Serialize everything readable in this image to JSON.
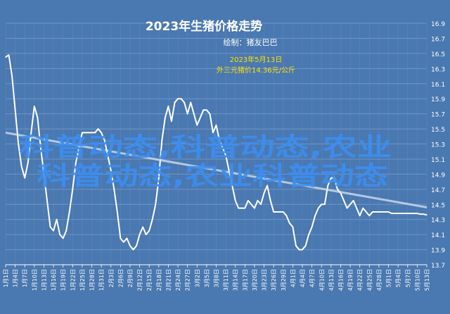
{
  "chart_data": {
    "type": "line",
    "title": "2023年生猪价格走势",
    "subtitle": "绘制：猪友巴巴",
    "annotation": {
      "line1": "2023年5月13日",
      "line2": "外三元猪价14.36元/公斤",
      "x": "5月13日",
      "y": 14.36
    },
    "watermark": {
      "line1": "科普动态,科普动态,农业",
      "line2": "科普动态,农业科普动态"
    },
    "ylim": [
      13.7,
      16.9
    ],
    "y_ticks": [
      "16.9",
      "16.7",
      "16.5",
      "16.3",
      "16.1",
      "15.9",
      "15.7",
      "15.5",
      "15.3",
      "15.1",
      "14.9",
      "14.7",
      "14.5",
      "14.3",
      "14.1",
      "13.9",
      "13.7"
    ],
    "x_tick_labels": [
      "1月1日",
      "1月4日",
      "1月7日",
      "1月10日",
      "1月13日",
      "1月16日",
      "1月19日",
      "1月22日",
      "1月25日",
      "1月28日",
      "1月31日",
      "2月3日",
      "2月6日",
      "2月9日",
      "2月12日",
      "2月15日",
      "2月18日",
      "2月21日",
      "2月24日",
      "2月27日",
      "3月2日",
      "3月5日",
      "3月8日",
      "3月11日",
      "3月14日",
      "3月17日",
      "3月20日",
      "3月23日",
      "3月26日",
      "3月29日",
      "4月1日",
      "4月4日",
      "4月7日",
      "4月10日",
      "4月13日",
      "4月16日",
      "4月19日",
      "4月22日",
      "4月25日",
      "4月28日",
      "5月1日",
      "5月4日",
      "5月7日",
      "5月10日",
      "5月13日"
    ],
    "series": [
      {
        "kind": "price",
        "x_index": [
          0,
          1,
          2,
          3,
          4,
          5,
          6,
          7,
          8,
          9,
          10,
          11,
          12,
          13,
          14,
          15,
          16,
          17,
          18,
          19,
          20,
          21,
          22,
          23,
          24,
          25,
          26,
          27,
          28,
          29,
          30,
          31,
          32,
          33,
          34,
          35,
          36,
          37,
          38,
          39,
          40,
          41,
          42,
          43,
          44,
          45,
          46,
          47,
          48,
          49,
          50,
          51,
          52,
          53,
          54,
          55,
          56,
          57,
          58,
          59,
          60,
          61,
          62,
          63,
          64,
          65,
          66,
          67,
          68,
          69,
          70,
          71,
          72,
          73,
          74,
          75,
          76,
          77,
          78,
          79,
          80,
          81,
          82,
          83,
          84,
          85,
          86,
          87,
          88,
          89,
          90,
          91,
          92,
          93,
          94,
          95,
          96,
          97,
          98,
          99,
          100,
          101,
          102,
          103,
          104,
          105,
          106,
          107,
          108,
          109,
          110,
          111,
          112,
          113,
          114,
          115,
          116,
          117,
          118,
          119,
          120,
          121,
          122,
          123,
          124,
          125,
          126,
          127,
          128,
          129,
          130,
          131,
          132
        ],
        "values": [
          16.45,
          16.48,
          16.2,
          15.75,
          15.3,
          15.0,
          14.85,
          15.05,
          15.45,
          15.8,
          15.65,
          15.25,
          14.9,
          14.55,
          14.2,
          14.15,
          14.3,
          14.1,
          14.05,
          14.15,
          14.4,
          14.7,
          15.05,
          15.25,
          15.45,
          15.45,
          15.45,
          15.45,
          15.45,
          15.5,
          15.45,
          15.35,
          15.15,
          14.95,
          14.7,
          14.4,
          14.05,
          14.0,
          14.05,
          13.95,
          13.9,
          13.95,
          14.1,
          14.2,
          14.1,
          14.15,
          14.3,
          14.5,
          14.85,
          15.35,
          15.65,
          15.8,
          15.6,
          15.85,
          15.9,
          15.9,
          15.85,
          15.7,
          15.85,
          15.7,
          15.55,
          15.65,
          15.75,
          15.75,
          15.7,
          15.45,
          15.55,
          15.35,
          15.25,
          15.15,
          14.95,
          14.75,
          14.55,
          14.45,
          14.45,
          14.45,
          14.55,
          14.5,
          14.45,
          14.55,
          14.5,
          14.65,
          14.75,
          14.55,
          14.4,
          14.4,
          14.4,
          14.4,
          14.35,
          14.25,
          14.2,
          13.95,
          13.9,
          13.9,
          13.95,
          14.1,
          14.2,
          14.35,
          14.45,
          14.5,
          14.5,
          14.75,
          14.85,
          14.85,
          14.7,
          14.65,
          14.55,
          14.45,
          14.5,
          14.55,
          14.45,
          14.35,
          14.45,
          14.4,
          14.35,
          14.4,
          14.4,
          14.4,
          14.4,
          14.4,
          14.4,
          14.38,
          14.38,
          14.38,
          14.38,
          14.38,
          14.38,
          14.38,
          14.38,
          14.38,
          14.37,
          14.37,
          14.36
        ]
      },
      {
        "kind": "trend",
        "x_index": [
          0,
          132
        ],
        "values": [
          15.45,
          14.46
        ]
      }
    ],
    "colors": {
      "background": "#4a78b0",
      "line": "#ffffff",
      "trend": "#d8e4f2",
      "annotation": "#ffe100",
      "watermark": "#3c8ef0",
      "grid": "#6f96c6"
    },
    "grid": true,
    "y_axis_side": "right"
  }
}
